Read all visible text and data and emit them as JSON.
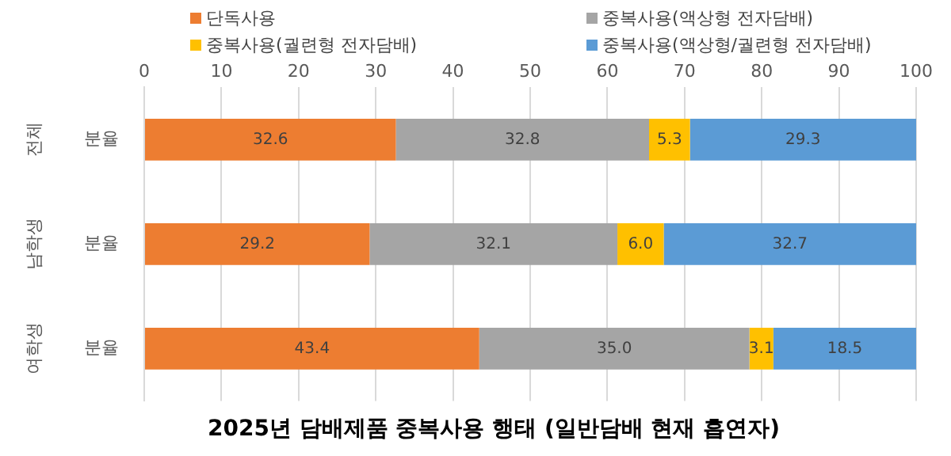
{
  "chart_data": {
    "type": "bar",
    "orientation": "horizontal",
    "stacked": true,
    "title": "2025년 담배제품 중복사용 행태 (일반담배 현재 흡연자)",
    "categories": [
      "분율",
      "분율",
      "분율"
    ],
    "annotations": [
      "전체",
      "남학생",
      "여학생"
    ],
    "series": [
      {
        "name": "단독사용",
        "color": "#ed7d31",
        "values": [
          32.6,
          29.2,
          43.4
        ],
        "value_labels": [
          "32.6",
          "29.2",
          "43.4"
        ]
      },
      {
        "name": "중복사용(액상형 전자담배)",
        "color": "#a5a5a5",
        "values": [
          32.8,
          32.1,
          35.0
        ],
        "value_labels": [
          "32.8",
          "32.1",
          "35.0"
        ]
      },
      {
        "name": "중복사용(궐련형 전자담배)",
        "color": "#ffc000",
        "values": [
          5.3,
          6.0,
          3.1
        ],
        "value_labels": [
          "5.3",
          "6.0",
          "3.1"
        ]
      },
      {
        "name": "중복사용(액상형/궐련형 전자담배)",
        "color": "#5b9bd5",
        "values": [
          29.3,
          32.7,
          18.5
        ],
        "value_labels": [
          "29.3",
          "32.7",
          "18.5"
        ]
      }
    ],
    "xlim": [
      0,
      100
    ],
    "xticks": [
      0,
      10,
      20,
      30,
      40,
      50,
      60,
      70,
      80,
      90,
      100
    ],
    "grid": "x",
    "legend": "top"
  }
}
